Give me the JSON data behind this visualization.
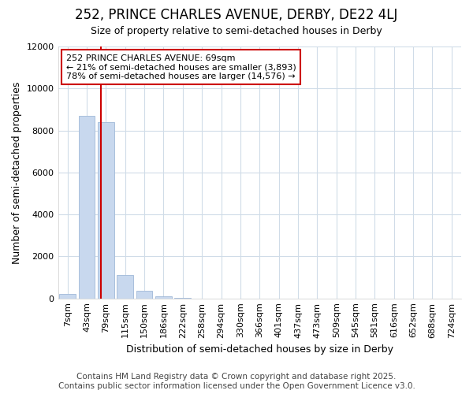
{
  "title": "252, PRINCE CHARLES AVENUE, DERBY, DE22 4LJ",
  "subtitle": "Size of property relative to semi-detached houses in Derby",
  "xlabel": "Distribution of semi-detached houses by size in Derby",
  "ylabel": "Number of semi-detached properties",
  "categories": [
    "7sqm",
    "43sqm",
    "79sqm",
    "115sqm",
    "150sqm",
    "186sqm",
    "222sqm",
    "258sqm",
    "294sqm",
    "330sqm",
    "366sqm",
    "401sqm",
    "437sqm",
    "473sqm",
    "509sqm",
    "545sqm",
    "581sqm",
    "616sqm",
    "652sqm",
    "688sqm",
    "724sqm"
  ],
  "values": [
    200,
    8700,
    8400,
    1100,
    350,
    100,
    20,
    5,
    0,
    0,
    0,
    0,
    0,
    0,
    0,
    0,
    0,
    0,
    0,
    0,
    0
  ],
  "bar_color": "#c8d8ee",
  "bar_edgecolor": "#a0b8d8",
  "ylim": [
    0,
    12000
  ],
  "yticks": [
    0,
    2000,
    4000,
    6000,
    8000,
    10000,
    12000
  ],
  "vline_color": "#cc0000",
  "vline_x_bin": 1.72,
  "annotation_text": "252 PRINCE CHARLES AVENUE: 69sqm\n← 21% of semi-detached houses are smaller (3,893)\n78% of semi-detached houses are larger (14,576) →",
  "annotation_box_color": "#cc0000",
  "footer_line1": "Contains HM Land Registry data © Crown copyright and database right 2025.",
  "footer_line2": "Contains public sector information licensed under the Open Government Licence v3.0.",
  "bg_color": "#ffffff",
  "grid_color": "#d0dce8",
  "title_fontsize": 12,
  "subtitle_fontsize": 9,
  "tick_fontsize": 8,
  "ylabel_fontsize": 9,
  "xlabel_fontsize": 9,
  "footer_fontsize": 7.5
}
